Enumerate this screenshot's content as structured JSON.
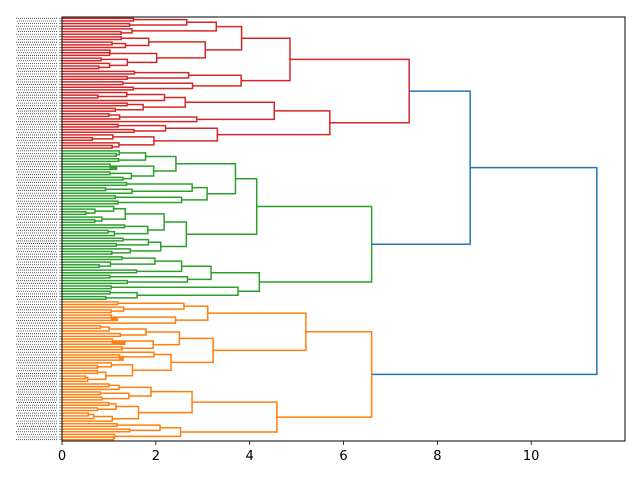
{
  "chart_data": {
    "type": "dendrogram",
    "orientation": "horizontal",
    "xlim": [
      0,
      12
    ],
    "x_ticks": [
      0,
      2,
      4,
      6,
      8,
      10
    ],
    "title": "",
    "xlabel": "",
    "ylabel": "",
    "grid": false,
    "leaf_count": 160,
    "clusters": [
      {
        "color": "#d62728",
        "leaf_count": 50,
        "top_height": 7.4
      },
      {
        "color": "#2ca02c",
        "leaf_count": 57,
        "top_height": 6.6
      },
      {
        "color": "#ff7f0e",
        "leaf_count": 53,
        "top_height": 6.6
      }
    ],
    "top_links": [
      {
        "children": [
          "red",
          "green"
        ],
        "height": 8.7,
        "color": "#1f77b4"
      },
      {
        "children": [
          "red+green",
          "orange"
        ],
        "height": 11.4,
        "color": "#1f77b4"
      }
    ]
  }
}
